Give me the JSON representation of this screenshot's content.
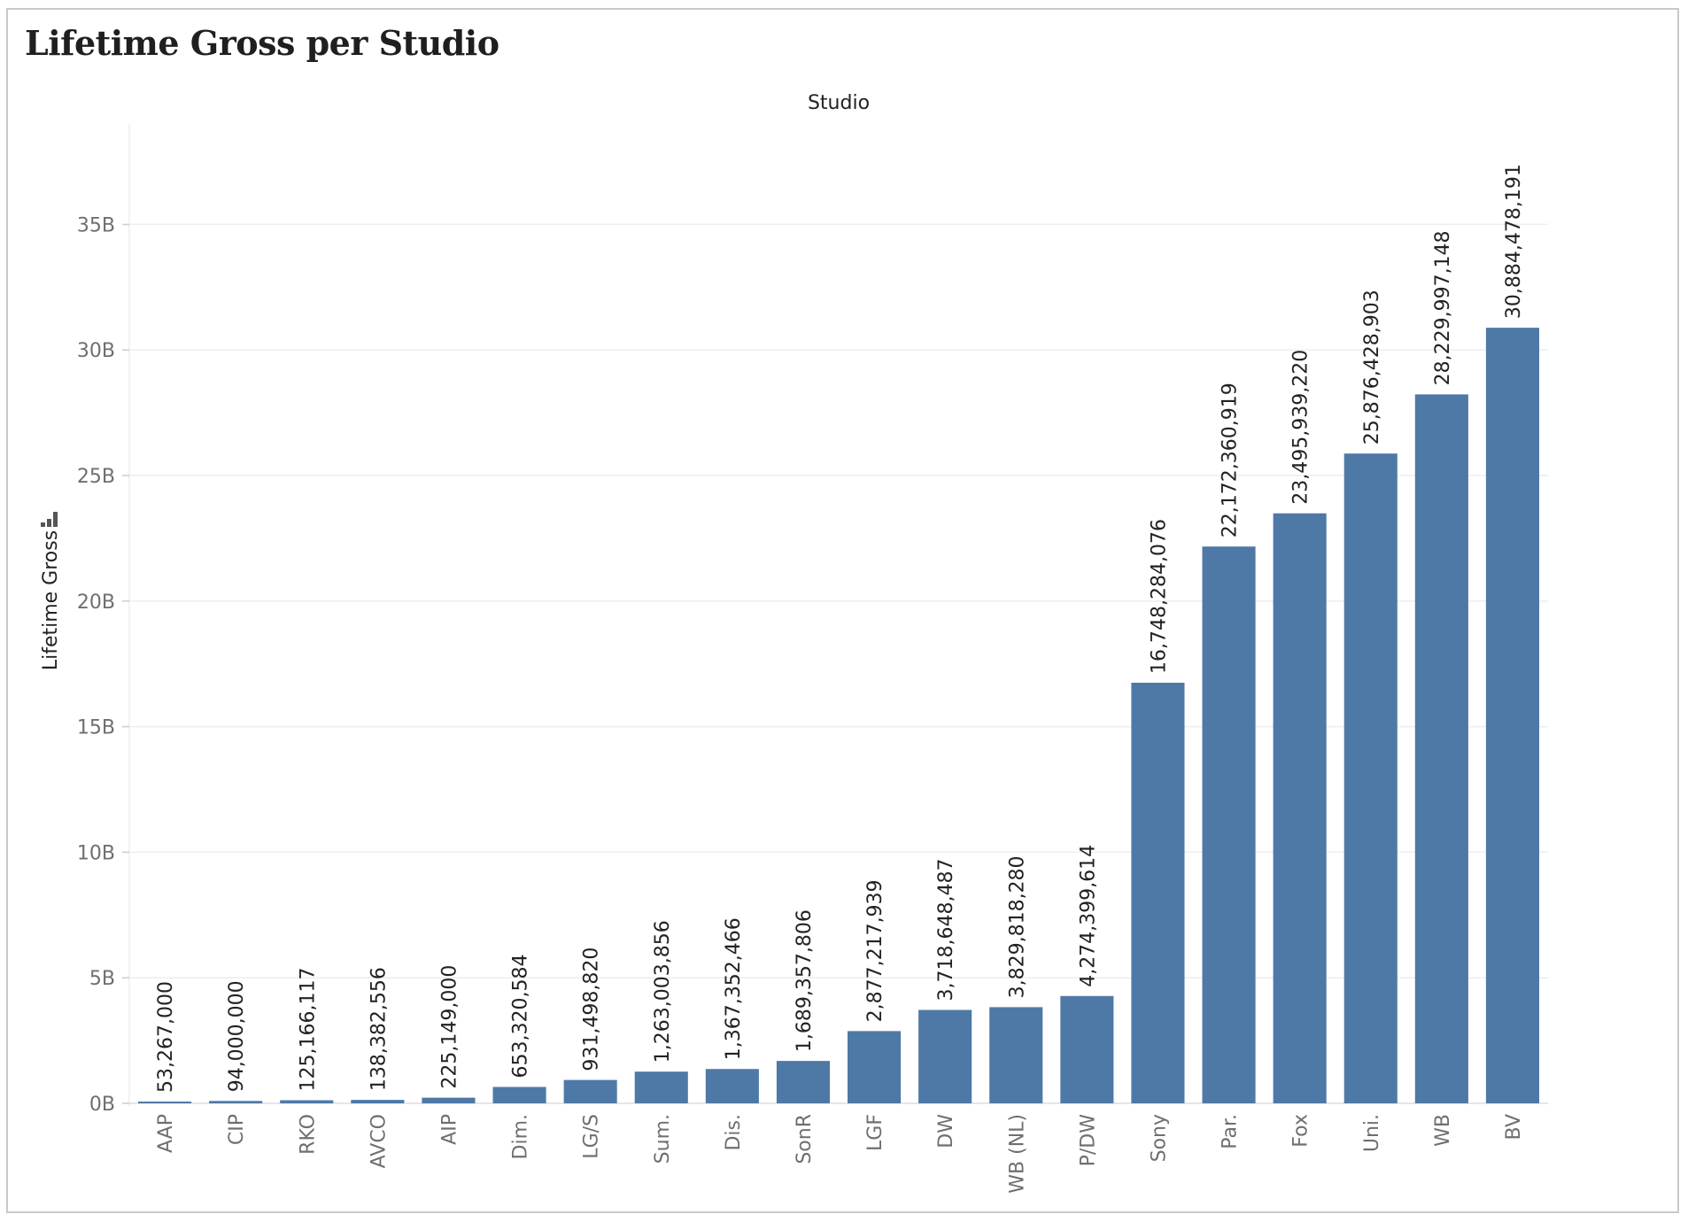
{
  "page": {
    "title": "Lifetime Gross per Studio"
  },
  "chart_data": {
    "type": "bar",
    "title": "Lifetime Gross per Studio",
    "xlabel": "Studio",
    "ylabel": "Lifetime Gross",
    "ylabel_icon": "sort-bars-icon",
    "ylim": [
      0,
      39000000000
    ],
    "yticks": [
      0,
      5000000000,
      10000000000,
      15000000000,
      20000000000,
      25000000000,
      30000000000,
      35000000000
    ],
    "ytick_labels": [
      "0B",
      "5B",
      "10B",
      "15B",
      "20B",
      "25B",
      "30B",
      "35B"
    ],
    "grid": true,
    "bar_color": "#4e79a7",
    "categories": [
      "AAP",
      "CIP",
      "RKO",
      "AVCO",
      "AIP",
      "Dim.",
      "LG/S",
      "Sum.",
      "Dis.",
      "SonR",
      "LGF",
      "DW",
      "WB (NL)",
      "P/DW",
      "Sony",
      "Par.",
      "Fox",
      "Uni.",
      "WB",
      "BV"
    ],
    "values": [
      53267000,
      94000000,
      125166117,
      138382556,
      225149000,
      653320584,
      931498820,
      1263003856,
      1367352466,
      1689357806,
      2877217939,
      3718648487,
      3829818280,
      4274399614,
      16748284076,
      22172360919,
      23495939220,
      25876428903,
      28229997148,
      30884478191
    ],
    "data_labels": [
      "53,267,000",
      "94,000,000",
      "125,166,117",
      "138,382,556",
      "225,149,000",
      "653,320,584",
      "931,498,820",
      "1,263,003,856",
      "1,367,352,466",
      "1,689,357,806",
      "2,877,217,939",
      "3,718,648,487",
      "3,829,818,280",
      "4,274,399,614",
      "16,748,284,076",
      "22,172,360,919",
      "23,495,939,220",
      "25,876,428,903",
      "28,229,997,148",
      "30,884,478,191"
    ]
  }
}
